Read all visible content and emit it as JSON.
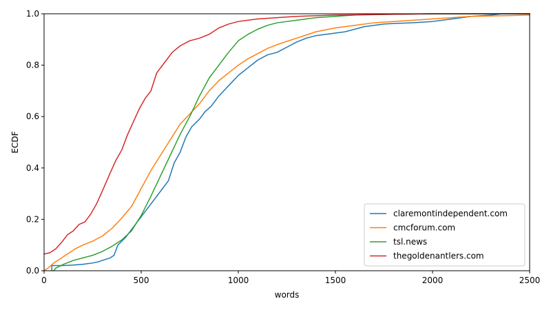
{
  "chart_data": {
    "type": "line",
    "xlabel": "words",
    "ylabel": "ECDF",
    "xlim": [
      0,
      2500
    ],
    "ylim": [
      0,
      1
    ],
    "xticks": [
      0,
      500,
      1000,
      1500,
      2000,
      2500
    ],
    "yticks": [
      0.0,
      0.2,
      0.4,
      0.6,
      0.8,
      1.0
    ],
    "xtick_labels": [
      "0",
      "500",
      "1000",
      "1500",
      "2000",
      "2500"
    ],
    "ytick_labels": [
      "0.0",
      "0.2",
      "0.4",
      "0.6",
      "0.8",
      "1.0"
    ],
    "grid": false,
    "legend_position": "lower-right",
    "series": [
      {
        "name": "claremontindependent.com",
        "color": "#1f77b4",
        "points": [
          [
            40,
            0
          ],
          [
            40,
            0.02
          ],
          [
            100,
            0.02
          ],
          [
            150,
            0.022
          ],
          [
            200,
            0.025
          ],
          [
            250,
            0.03
          ],
          [
            280,
            0.035
          ],
          [
            300,
            0.04
          ],
          [
            320,
            0.045
          ],
          [
            340,
            0.05
          ],
          [
            360,
            0.06
          ],
          [
            370,
            0.08
          ],
          [
            380,
            0.1
          ],
          [
            400,
            0.115
          ],
          [
            420,
            0.13
          ],
          [
            450,
            0.16
          ],
          [
            480,
            0.19
          ],
          [
            500,
            0.21
          ],
          [
            530,
            0.24
          ],
          [
            560,
            0.27
          ],
          [
            600,
            0.31
          ],
          [
            640,
            0.35
          ],
          [
            670,
            0.42
          ],
          [
            700,
            0.46
          ],
          [
            730,
            0.52
          ],
          [
            760,
            0.56
          ],
          [
            800,
            0.59
          ],
          [
            830,
            0.62
          ],
          [
            860,
            0.64
          ],
          [
            900,
            0.68
          ],
          [
            950,
            0.72
          ],
          [
            1000,
            0.76
          ],
          [
            1050,
            0.79
          ],
          [
            1100,
            0.82
          ],
          [
            1150,
            0.84
          ],
          [
            1200,
            0.85
          ],
          [
            1250,
            0.87
          ],
          [
            1300,
            0.89
          ],
          [
            1350,
            0.905
          ],
          [
            1400,
            0.915
          ],
          [
            1450,
            0.92
          ],
          [
            1500,
            0.925
          ],
          [
            1550,
            0.93
          ],
          [
            1600,
            0.94
          ],
          [
            1650,
            0.95
          ],
          [
            1700,
            0.955
          ],
          [
            1750,
            0.96
          ],
          [
            1800,
            0.962
          ],
          [
            1900,
            0.965
          ],
          [
            2000,
            0.97
          ],
          [
            2100,
            0.98
          ],
          [
            2200,
            0.99
          ],
          [
            2300,
            0.995
          ],
          [
            2360,
            1.0
          ],
          [
            2500,
            1.0
          ]
        ]
      },
      {
        "name": "cmcforum.com",
        "color": "#ff7f0e",
        "points": [
          [
            0,
            0
          ],
          [
            20,
            0.01
          ],
          [
            50,
            0.03
          ],
          [
            80,
            0.045
          ],
          [
            120,
            0.065
          ],
          [
            160,
            0.085
          ],
          [
            200,
            0.1
          ],
          [
            250,
            0.115
          ],
          [
            300,
            0.135
          ],
          [
            350,
            0.165
          ],
          [
            400,
            0.205
          ],
          [
            450,
            0.25
          ],
          [
            500,
            0.32
          ],
          [
            550,
            0.39
          ],
          [
            600,
            0.45
          ],
          [
            650,
            0.51
          ],
          [
            700,
            0.57
          ],
          [
            750,
            0.61
          ],
          [
            800,
            0.65
          ],
          [
            850,
            0.7
          ],
          [
            900,
            0.74
          ],
          [
            950,
            0.77
          ],
          [
            1000,
            0.8
          ],
          [
            1050,
            0.825
          ],
          [
            1100,
            0.845
          ],
          [
            1150,
            0.865
          ],
          [
            1200,
            0.88
          ],
          [
            1300,
            0.905
          ],
          [
            1400,
            0.93
          ],
          [
            1500,
            0.945
          ],
          [
            1600,
            0.955
          ],
          [
            1700,
            0.965
          ],
          [
            1800,
            0.97
          ],
          [
            1900,
            0.975
          ],
          [
            2000,
            0.98
          ],
          [
            2100,
            0.985
          ],
          [
            2200,
            0.99
          ],
          [
            2400,
            0.993
          ],
          [
            2500,
            0.995
          ]
        ]
      },
      {
        "name": "tsl.news",
        "color": "#2ca02c",
        "points": [
          [
            50,
            0
          ],
          [
            60,
            0.01
          ],
          [
            100,
            0.025
          ],
          [
            150,
            0.04
          ],
          [
            200,
            0.05
          ],
          [
            250,
            0.06
          ],
          [
            300,
            0.075
          ],
          [
            350,
            0.095
          ],
          [
            400,
            0.12
          ],
          [
            450,
            0.155
          ],
          [
            500,
            0.215
          ],
          [
            550,
            0.29
          ],
          [
            600,
            0.37
          ],
          [
            650,
            0.45
          ],
          [
            700,
            0.53
          ],
          [
            750,
            0.6
          ],
          [
            800,
            0.68
          ],
          [
            850,
            0.75
          ],
          [
            900,
            0.8
          ],
          [
            950,
            0.85
          ],
          [
            1000,
            0.895
          ],
          [
            1050,
            0.92
          ],
          [
            1100,
            0.94
          ],
          [
            1150,
            0.955
          ],
          [
            1200,
            0.965
          ],
          [
            1300,
            0.975
          ],
          [
            1400,
            0.985
          ],
          [
            1500,
            0.99
          ],
          [
            1600,
            0.995
          ],
          [
            1800,
            0.998
          ],
          [
            2000,
            1.0
          ],
          [
            2500,
            1.0
          ]
        ]
      },
      {
        "name": "thegoldenantlers.com",
        "color": "#d62728",
        "points": [
          [
            0,
            0.065
          ],
          [
            30,
            0.07
          ],
          [
            60,
            0.085
          ],
          [
            90,
            0.11
          ],
          [
            120,
            0.14
          ],
          [
            150,
            0.155
          ],
          [
            180,
            0.18
          ],
          [
            210,
            0.19
          ],
          [
            240,
            0.22
          ],
          [
            270,
            0.26
          ],
          [
            300,
            0.31
          ],
          [
            340,
            0.38
          ],
          [
            370,
            0.43
          ],
          [
            400,
            0.47
          ],
          [
            430,
            0.53
          ],
          [
            460,
            0.58
          ],
          [
            490,
            0.63
          ],
          [
            520,
            0.67
          ],
          [
            550,
            0.7
          ],
          [
            580,
            0.77
          ],
          [
            620,
            0.81
          ],
          [
            660,
            0.85
          ],
          [
            700,
            0.875
          ],
          [
            750,
            0.895
          ],
          [
            800,
            0.905
          ],
          [
            850,
            0.92
          ],
          [
            900,
            0.945
          ],
          [
            950,
            0.96
          ],
          [
            1000,
            0.97
          ],
          [
            1100,
            0.98
          ],
          [
            1200,
            0.985
          ],
          [
            1300,
            0.99
          ],
          [
            1500,
            0.995
          ],
          [
            1700,
            0.997
          ],
          [
            2000,
            1.0
          ],
          [
            2500,
            1.0
          ]
        ]
      }
    ]
  }
}
